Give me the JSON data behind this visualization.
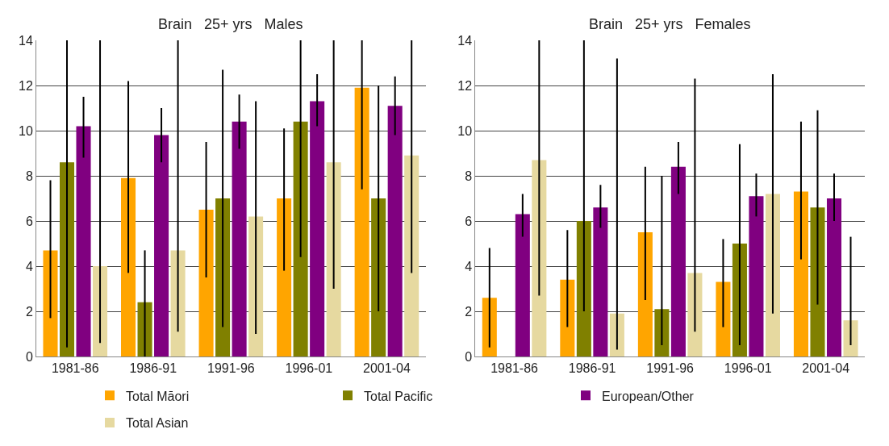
{
  "chart_data": [
    {
      "type": "bar",
      "title": "Brain   25+ yrs   Males",
      "categories": [
        "1981-86",
        "1986-91",
        "1991-96",
        "1996-01",
        "2001-04"
      ],
      "ylim": [
        0,
        14
      ],
      "yticks": [
        0,
        2,
        4,
        6,
        8,
        10,
        12,
        14
      ],
      "grid": "y",
      "legend": "bottom",
      "series": [
        {
          "name": "Total Māori",
          "color": "#ffa500",
          "values": [
            4.7,
            7.9,
            6.5,
            7.0,
            11.9
          ],
          "errors": [
            [
              1.7,
              7.8
            ],
            [
              3.7,
              12.2
            ],
            [
              3.5,
              9.5
            ],
            [
              3.8,
              10.1
            ],
            [
              7.4,
              14
            ]
          ]
        },
        {
          "name": "Total Pacific",
          "color": "#808000",
          "values": [
            8.6,
            2.4,
            7.0,
            10.4,
            7.0
          ],
          "errors": [
            [
              0.4,
              14
            ],
            [
              0,
              4.7
            ],
            [
              1.3,
              12.7
            ],
            [
              4.4,
              14
            ],
            [
              2.0,
              12.0
            ]
          ]
        },
        {
          "name": "European/Other",
          "color": "#800080",
          "values": [
            10.2,
            9.8,
            10.4,
            11.3,
            11.1
          ],
          "errors": [
            [
              8.8,
              11.5
            ],
            [
              8.6,
              11.0
            ],
            [
              9.2,
              11.6
            ],
            [
              10.2,
              12.5
            ],
            [
              9.8,
              12.4
            ]
          ]
        },
        {
          "name": "Total Asian",
          "color": "#e6d9a0",
          "values": [
            4.0,
            4.7,
            6.2,
            8.6,
            8.9
          ],
          "errors": [
            [
              0.6,
              14
            ],
            [
              1.1,
              14
            ],
            [
              1.0,
              11.3
            ],
            [
              3.0,
              14
            ],
            [
              3.7,
              14
            ]
          ]
        }
      ]
    },
    {
      "type": "bar",
      "title": "Brain   25+ yrs   Females",
      "categories": [
        "1981-86",
        "1986-91",
        "1991-96",
        "1996-01",
        "2001-04"
      ],
      "ylim": [
        0,
        14
      ],
      "yticks": [
        0,
        2,
        4,
        6,
        8,
        10,
        12,
        14
      ],
      "grid": "y",
      "legend": "bottom",
      "series": [
        {
          "name": "Total Māori",
          "color": "#ffa500",
          "values": [
            2.6,
            3.4,
            5.5,
            3.3,
            7.3
          ],
          "errors": [
            [
              0.4,
              4.8
            ],
            [
              1.3,
              5.6
            ],
            [
              2.5,
              8.4
            ],
            [
              1.3,
              5.2
            ],
            [
              4.3,
              10.4
            ]
          ]
        },
        {
          "name": "Total Pacific",
          "color": "#808000",
          "values": [
            null,
            6.0,
            2.1,
            5.0,
            6.6
          ],
          "errors": [
            null,
            [
              2.0,
              14
            ],
            [
              0.5,
              8.0
            ],
            [
              0.5,
              9.4
            ],
            [
              2.3,
              10.9
            ]
          ]
        },
        {
          "name": "European/Other",
          "color": "#800080",
          "values": [
            6.3,
            6.6,
            8.4,
            7.1,
            7.0
          ],
          "errors": [
            [
              5.3,
              7.2
            ],
            [
              5.7,
              7.6
            ],
            [
              7.2,
              9.5
            ],
            [
              6.2,
              8.1
            ],
            [
              6.0,
              8.1
            ]
          ]
        },
        {
          "name": "Total Asian",
          "color": "#e6d9a0",
          "values": [
            8.7,
            1.9,
            3.7,
            7.2,
            1.6
          ],
          "errors": [
            [
              2.7,
              14
            ],
            [
              0.3,
              13.2
            ],
            [
              1.1,
              12.3
            ],
            [
              1.9,
              12.5
            ],
            [
              0.5,
              5.3
            ]
          ]
        }
      ]
    }
  ]
}
